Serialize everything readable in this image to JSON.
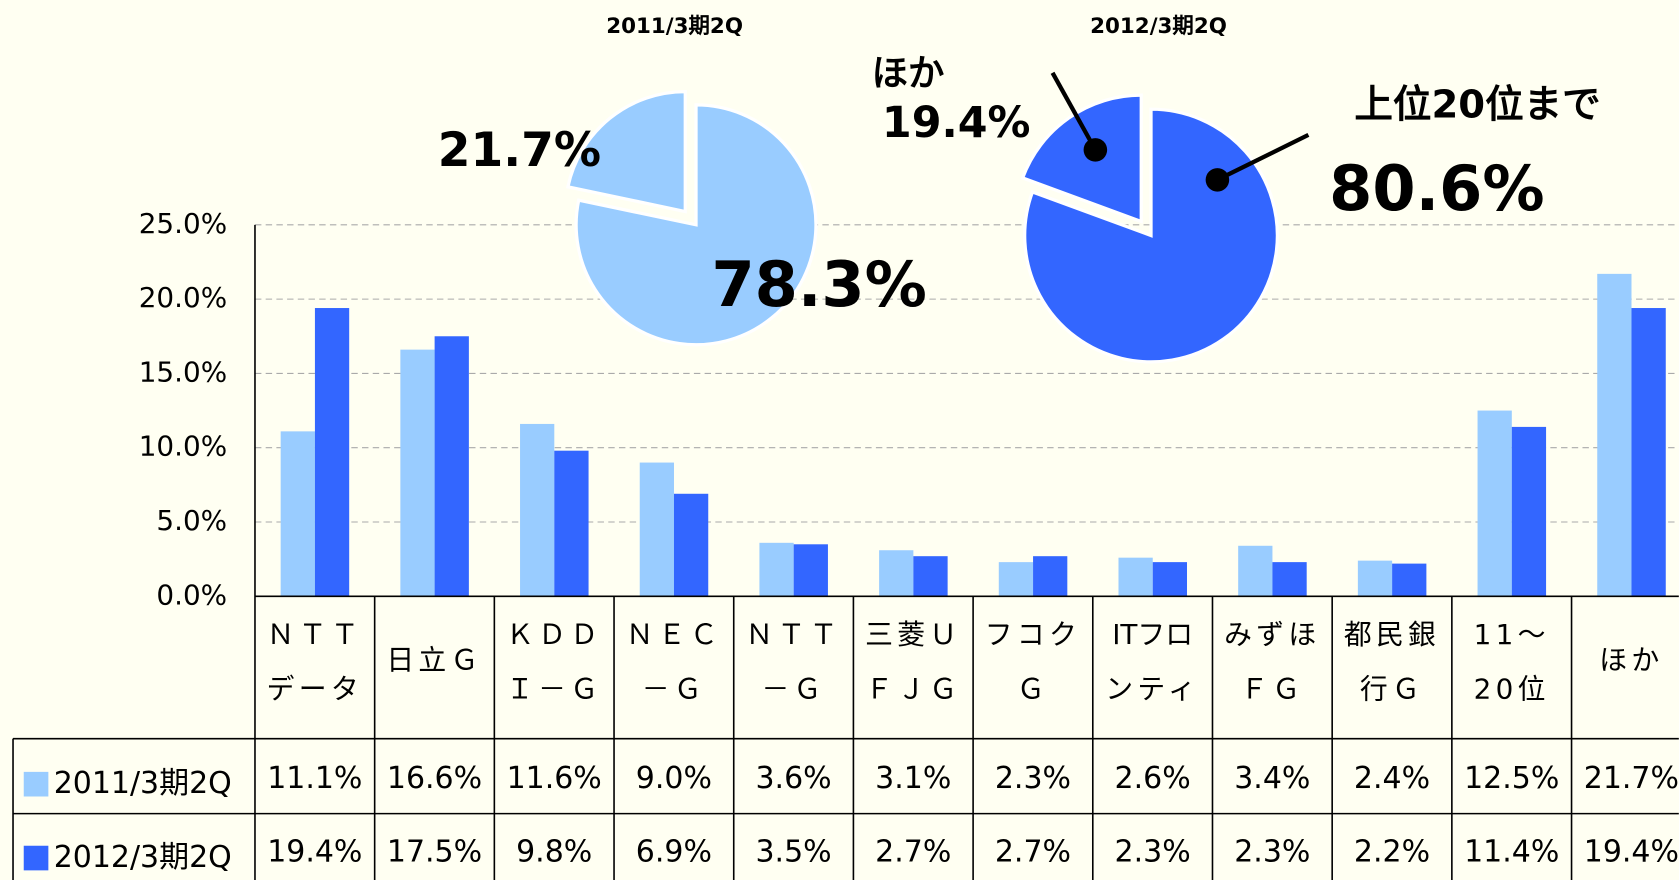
{
  "chart_data": [
    {
      "type": "bar",
      "categories": [
        [
          "ＮＴＴ",
          "データ"
        ],
        [
          "日立Ｇ"
        ],
        [
          "ＫＤＤ",
          "Ｉ－Ｇ"
        ],
        [
          "ＮＥＣ",
          "－Ｇ"
        ],
        [
          "ＮＴＴ",
          "－Ｇ"
        ],
        [
          "三菱Ｕ",
          "ＦＪＧ"
        ],
        [
          "フコク",
          "Ｇ"
        ],
        [
          "ITフロ",
          "ンティ"
        ],
        [
          "みずほ",
          "ＦＧ"
        ],
        [
          "都民銀",
          "行Ｇ"
        ],
        [
          "11～",
          "20位"
        ],
        [
          "ほか"
        ]
      ],
      "series": [
        {
          "name": "2011/3期2Q",
          "color": "#99ccff",
          "values": [
            11.1,
            16.6,
            11.6,
            9.0,
            3.6,
            3.1,
            2.3,
            2.6,
            3.4,
            2.4,
            12.5,
            21.7
          ],
          "value_labels": [
            "11.1%",
            "16.6%",
            "11.6%",
            "9.0%",
            "3.6%",
            "3.1%",
            "2.3%",
            "2.6%",
            "3.4%",
            "2.4%",
            "12.5%",
            "21.7%"
          ]
        },
        {
          "name": "2012/3期2Q",
          "color": "#3366ff",
          "values": [
            19.4,
            17.5,
            9.8,
            6.9,
            3.5,
            2.7,
            2.7,
            2.3,
            2.3,
            2.2,
            11.4,
            19.4
          ],
          "value_labels": [
            "19.4%",
            "17.5%",
            "9.8%",
            "6.9%",
            "3.5%",
            "2.7%",
            "2.7%",
            "2.3%",
            "2.3%",
            "2.2%",
            "11.4%",
            "19.4%"
          ]
        }
      ],
      "ylim": [
        0,
        25
      ],
      "yticks": [
        {
          "value": 0,
          "label": "0.0%"
        },
        {
          "value": 5,
          "label": "5.0%"
        },
        {
          "value": 10,
          "label": "10.0%"
        },
        {
          "value": 15,
          "label": "15.0%"
        },
        {
          "value": 20,
          "label": "20.0%"
        },
        {
          "value": 25,
          "label": "25.0%"
        }
      ],
      "grid": true
    },
    {
      "type": "pie",
      "title": "2011/3期2Q",
      "color": "#99ccff",
      "values": [
        78.3,
        21.7
      ],
      "value_labels": [
        "78.3%",
        "21.7%"
      ]
    },
    {
      "type": "pie",
      "title": "2012/3期2Q",
      "color": "#3366ff",
      "categories": [
        "上位20位まで",
        "ほか"
      ],
      "values": [
        80.6,
        19.4
      ],
      "value_labels": [
        "80.6%",
        "19.4%"
      ]
    }
  ]
}
